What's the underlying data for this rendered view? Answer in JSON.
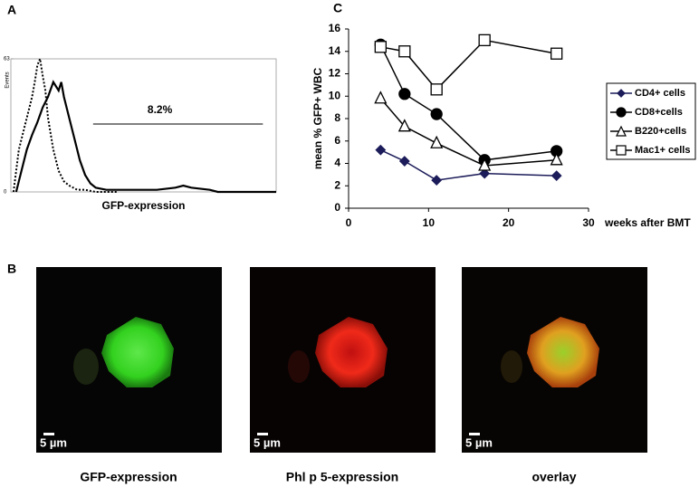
{
  "chart_data": [
    {
      "type": "line",
      "panel_label": "A",
      "ylabel": "Events",
      "xlabel": "GFP-expression",
      "xlim": [
        0,
        100
      ],
      "ylim": [
        0,
        63
      ],
      "yticks": [
        0,
        63
      ],
      "series": [
        {
          "color": "#000000",
          "dashed": true,
          "x": [
            1,
            3,
            5,
            7,
            8,
            9,
            10,
            11,
            12,
            13,
            14,
            16,
            18,
            20,
            22,
            25,
            28,
            32,
            40
          ],
          "values": [
            0,
            20,
            30,
            40,
            45,
            52,
            60,
            63,
            55,
            48,
            35,
            20,
            10,
            5,
            3,
            1,
            1,
            0,
            0
          ]
        },
        {
          "color": "#000000",
          "dashed": false,
          "x": [
            2,
            4,
            6,
            8,
            10,
            12,
            14,
            16,
            18,
            19,
            20,
            22,
            24,
            26,
            28,
            30,
            32,
            36,
            45,
            55,
            62,
            65,
            68,
            75,
            78,
            80,
            100
          ],
          "values": [
            0,
            10,
            20,
            27,
            33,
            40,
            45,
            52,
            48,
            52,
            45,
            35,
            25,
            15,
            8,
            4,
            2,
            1,
            1,
            1,
            2,
            3,
            2,
            1,
            0,
            0,
            0
          ]
        }
      ],
      "gate": {
        "label": "8.2%",
        "range": [
          31,
          95
        ]
      }
    },
    {
      "type": "line",
      "panel_label": "C",
      "ylabel": "mean % GFP+ WBC",
      "xlabel": "weeks after BMT",
      "x": [
        4,
        7,
        11,
        17,
        26
      ],
      "xlim": [
        0,
        30
      ],
      "xticks": [
        0,
        10,
        20,
        30
      ],
      "ylim": [
        0,
        16
      ],
      "yticks": [
        0,
        2,
        4,
        6,
        8,
        10,
        12,
        14,
        16
      ],
      "legend": "right",
      "series": [
        {
          "name": "CD4+ cells",
          "color": "#1c1c5a",
          "marker": "diamond",
          "filled": true,
          "values": [
            5.2,
            4.2,
            2.5,
            3.1,
            2.9
          ]
        },
        {
          "name": "CD8+cells",
          "color": "#000000",
          "marker": "circle",
          "filled": true,
          "values": [
            14.6,
            10.2,
            8.4,
            4.3,
            5.1
          ]
        },
        {
          "name": "B220+cells",
          "color": "#000000",
          "marker": "triangle",
          "filled": false,
          "values": [
            9.8,
            7.3,
            5.8,
            3.8,
            4.3
          ]
        },
        {
          "name": "Mac1+ cells",
          "color": "#000000",
          "marker": "square",
          "filled": false,
          "values": [
            14.4,
            14.0,
            10.6,
            15.0,
            13.8
          ]
        }
      ]
    }
  ],
  "images": {
    "panel_label": "B",
    "items": [
      {
        "scale_bar": "5 µm",
        "caption": "GFP-expression"
      },
      {
        "scale_bar": "5 µm",
        "caption": "Phl p 5-expression"
      },
      {
        "scale_bar": "5 µm",
        "caption": "overlay"
      }
    ]
  }
}
